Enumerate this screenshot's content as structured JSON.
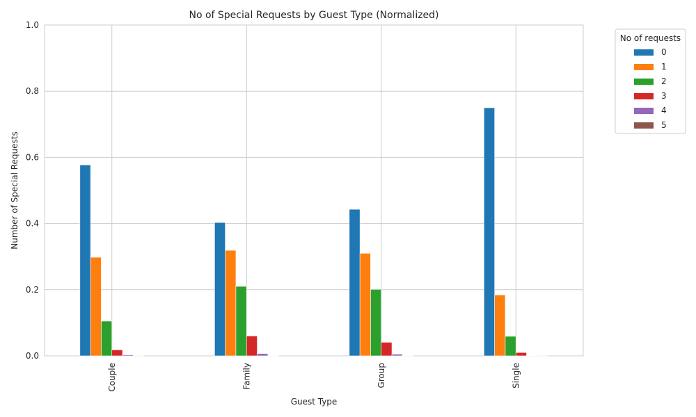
{
  "chart_data": {
    "type": "bar",
    "title": "No of Special Requests by Guest Type (Normalized)",
    "xlabel": "Guest Type",
    "ylabel": "Number of Special Requests",
    "categories": [
      "Couple",
      "Family",
      "Group",
      "Single"
    ],
    "ylim": [
      0,
      1.0
    ],
    "yticks": [
      "0.0",
      "0.2",
      "0.4",
      "0.6",
      "0.8",
      "1.0"
    ],
    "grid": true,
    "legend_title": "No of requests",
    "legend_position": "outside-top-right",
    "series": [
      {
        "name": "0",
        "color": "#1f77b4",
        "values": [
          0.577,
          0.403,
          0.443,
          0.75
        ]
      },
      {
        "name": "1",
        "color": "#ff7f0e",
        "values": [
          0.298,
          0.319,
          0.31,
          0.184
        ]
      },
      {
        "name": "2",
        "color": "#2ca02c",
        "values": [
          0.105,
          0.21,
          0.201,
          0.059
        ]
      },
      {
        "name": "3",
        "color": "#d62728",
        "values": [
          0.018,
          0.06,
          0.041,
          0.01
        ]
      },
      {
        "name": "4",
        "color": "#9467bd",
        "values": [
          0.003,
          0.007,
          0.005,
          0.001
        ]
      },
      {
        "name": "5",
        "color": "#8c564b",
        "values": [
          0.0003,
          0.0005,
          0.0004,
          0.0001
        ]
      }
    ]
  }
}
